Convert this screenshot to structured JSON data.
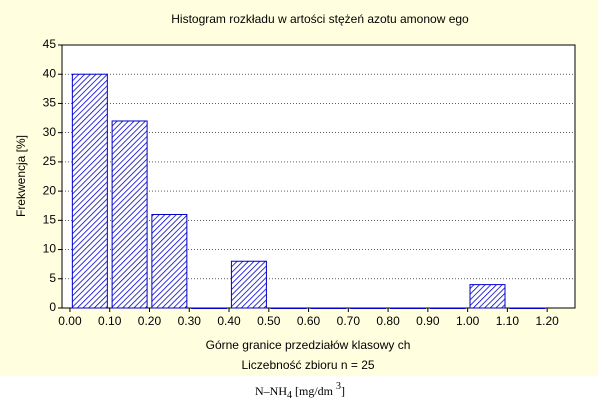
{
  "chart_data": {
    "type": "histogram",
    "title": "Histogram rozkładu w artości stężeń azotu amonow ego",
    "xlabel": "Górne granice przedziałów klasowy ch",
    "ylabel": "Frekwencja [%]",
    "note": "Liczebność zbioru  n = 25",
    "caption": [
      "N–NH",
      "4",
      "  [mg/dm ",
      "3",
      "]"
    ],
    "bins": [
      0,
      0.1,
      0.2,
      0.3,
      0.4,
      0.5,
      0.6,
      0.7,
      0.8,
      0.9,
      1.0,
      1.1,
      1.2
    ],
    "values": [
      40,
      32,
      16,
      0,
      8,
      0,
      0,
      0,
      0,
      0,
      4,
      0
    ],
    "color": "#0000cc",
    "xlim": [
      -0.02,
      1.27
    ],
    "xticks": [
      {
        "value": 0,
        "label": "0.00"
      },
      {
        "value": 0.1,
        "label": "0.10"
      },
      {
        "value": 0.2,
        "label": "0.20"
      },
      {
        "value": 0.3,
        "label": "0.30"
      },
      {
        "value": 0.4,
        "label": "0.40"
      },
      {
        "value": 0.5,
        "label": "0.50"
      },
      {
        "value": 0.6,
        "label": "0.60"
      },
      {
        "value": 0.7,
        "label": "0.70"
      },
      {
        "value": 0.8,
        "label": "0.80"
      },
      {
        "value": 0.9,
        "label": "0.90"
      },
      {
        "value": 1.0,
        "label": "1.00"
      },
      {
        "value": 1.1,
        "label": "1.10"
      },
      {
        "value": 1.2,
        "label": "1.20"
      }
    ],
    "ylim": [
      0,
      45
    ],
    "yticks": [
      0,
      5,
      10,
      15,
      20,
      25,
      30,
      35,
      40,
      45
    ],
    "grid": true
  }
}
